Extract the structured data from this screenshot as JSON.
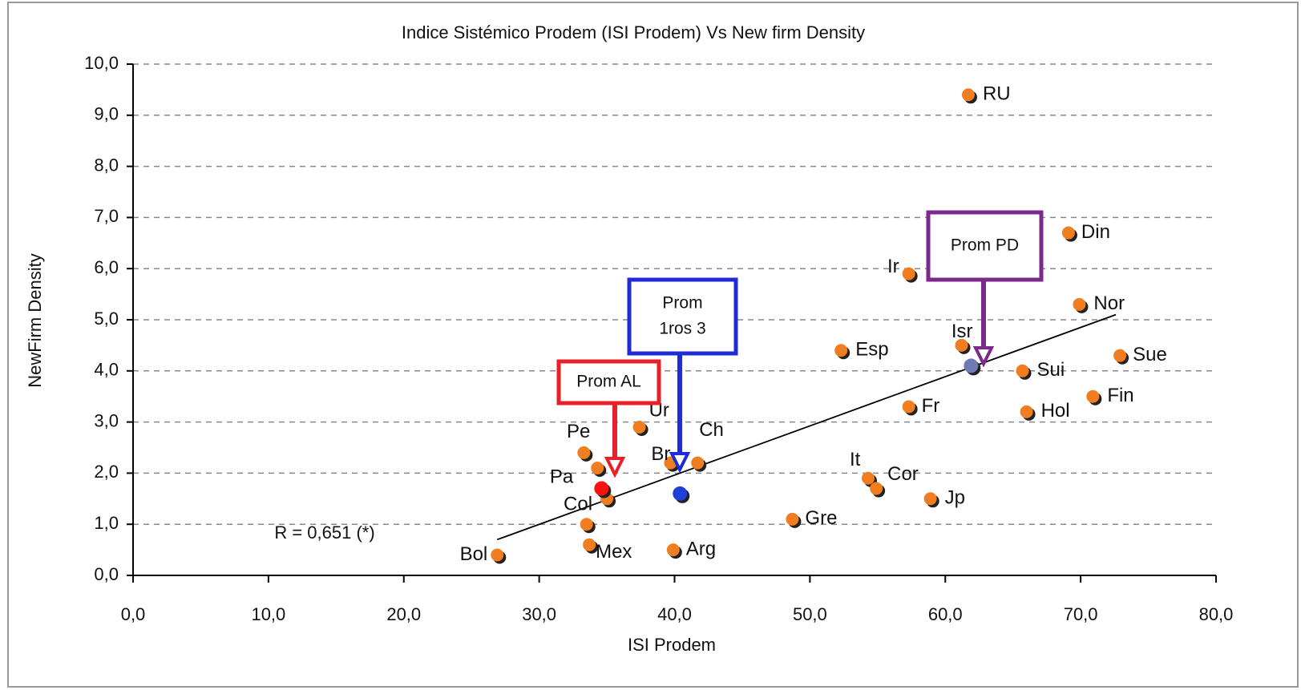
{
  "chart_data": {
    "type": "scatter",
    "title": "Indice Sistémico Prodem (ISI Prodem) Vs New firm Density",
    "x_label": "ISI Prodem",
    "y_label": "NewFirm Density",
    "xlim": [
      0,
      80
    ],
    "ylim": [
      0,
      10
    ],
    "xticks": [
      {
        "value": 0,
        "label": "0,0"
      },
      {
        "value": 10,
        "label": "10,0"
      },
      {
        "value": 20,
        "label": "20,0"
      },
      {
        "value": 30,
        "label": "30,0"
      },
      {
        "value": 40,
        "label": "40,0"
      },
      {
        "value": 50,
        "label": "50,0"
      },
      {
        "value": 60,
        "label": "60,0"
      },
      {
        "value": 70,
        "label": "70,0"
      },
      {
        "value": 80,
        "label": "80,0"
      }
    ],
    "yticks": [
      {
        "value": 0,
        "label": "0,0"
      },
      {
        "value": 1,
        "label": "1,0"
      },
      {
        "value": 2,
        "label": "2,0"
      },
      {
        "value": 3,
        "label": "3,0"
      },
      {
        "value": 4,
        "label": "4,0"
      },
      {
        "value": 5,
        "label": "5,0"
      },
      {
        "value": 6,
        "label": "6,0"
      },
      {
        "value": 7,
        "label": "7,0"
      },
      {
        "value": 8,
        "label": "8,0"
      },
      {
        "value": 9,
        "label": "9,0"
      },
      {
        "value": 10,
        "label": "10,0"
      }
    ],
    "grid": true,
    "color": "#f07d1f",
    "labels": [
      "RU",
      "Din",
      "Ir",
      "Nor",
      "Esp",
      "Isr",
      "Sue",
      "Sui",
      "Fin",
      "Fr",
      "Hol",
      "Ur",
      "Ch",
      "Br",
      "Pe",
      "Pa",
      "Col",
      null,
      "Mex",
      "Bol",
      "Arg",
      "Gre",
      "It",
      "Cor",
      "Jp"
    ],
    "x": [
      61.7,
      69.1,
      57.3,
      69.9,
      52.3,
      61.2,
      72.9,
      65.7,
      70.9,
      57.3,
      66.0,
      37.4,
      41.7,
      39.7,
      33.3,
      34.3,
      35.0,
      33.5,
      33.7,
      26.9,
      39.9,
      48.7,
      54.3,
      54.9,
      58.9
    ],
    "y": [
      9.4,
      6.7,
      5.9,
      5.3,
      4.4,
      4.5,
      4.3,
      4.0,
      3.5,
      3.3,
      3.2,
      2.9,
      2.2,
      2.2,
      2.4,
      2.1,
      1.5,
      1.0,
      0.6,
      0.4,
      0.5,
      1.1,
      1.9,
      1.7,
      1.5
    ],
    "averages": [
      {
        "label": [
          "Prom  AL"
        ],
        "x": 34.6,
        "y": 1.7,
        "color": "#ff1010",
        "box_color": "#e8202a"
      },
      {
        "label": [
          "Prom",
          "1ros 3"
        ],
        "x": 40.4,
        "y": 1.6,
        "color": "#1f3fd6",
        "box_color": "#1f2bd6"
      },
      {
        "label": [
          "Prom PD"
        ],
        "x": 61.9,
        "y": 4.1,
        "color": "#6e7bb5",
        "box_color": "#7b2a8c"
      }
    ],
    "trendline": {
      "x": [
        26.9,
        72.6
      ],
      "y": [
        0.7,
        5.1
      ],
      "color": "#000000"
    },
    "annotation": "R = 0,651 (*)"
  }
}
